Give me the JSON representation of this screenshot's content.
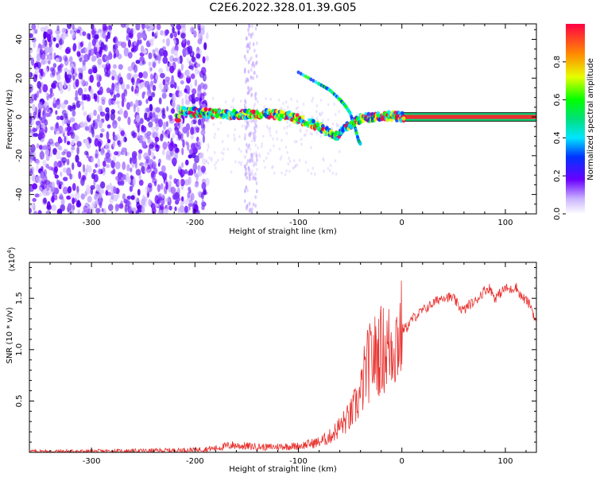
{
  "title": "C2E6.2022.328.01.39.G05",
  "colors": {
    "line": "#e8322f",
    "axis": "#000000",
    "trace_ridge": "#e8322f"
  },
  "chart_data": [
    {
      "type": "heatmap",
      "name": "spectrogram",
      "xlabel": "Height of straight line (km)",
      "ylabel": "Frequency (Hz)",
      "xlim": [
        -360,
        130
      ],
      "ylim": [
        -50,
        48
      ],
      "xticks": [
        -300,
        -200,
        -100,
        0,
        100
      ],
      "xtick_labels": [
        "-300",
        "-200",
        "-100",
        "0",
        "100"
      ],
      "yticks": [
        -40,
        -20,
        0,
        20,
        40
      ],
      "ytick_labels": [
        "-40",
        "-20",
        "0",
        "20",
        "40"
      ],
      "colorbar": {
        "label": "Normalized spectral amplitude",
        "range": [
          0,
          1
        ],
        "ticks": [
          0.0,
          0.2,
          0.4,
          0.6,
          0.8
        ],
        "tick_labels": [
          "0.0",
          "0.2",
          "0.4",
          "0.6",
          "0.8"
        ]
      },
      "ridge": {
        "description_free_points_x": [
          -215,
          -190,
          -170,
          -150,
          -130,
          -110,
          -95,
          -80,
          -70,
          -62,
          -55,
          -50,
          -45,
          -40,
          -30,
          -20,
          -10,
          0,
          20,
          60,
          100,
          130
        ],
        "description_free_points_y": [
          3,
          2,
          1,
          1.5,
          1.5,
          0.5,
          -2,
          -5,
          -8,
          -10,
          -6,
          -4,
          -2,
          -1,
          0,
          0.5,
          0.5,
          0,
          0,
          0,
          0,
          0
        ]
      },
      "secondary_trace": {
        "x": [
          -100,
          -80,
          -70,
          -60,
          -55,
          -50,
          -45,
          -42,
          -40
        ],
        "y": [
          23,
          17,
          14,
          9,
          6,
          2,
          -6,
          -12,
          -14
        ]
      }
    },
    {
      "type": "line",
      "name": "snr",
      "xlabel": "Height of straight line (km)",
      "ylabel": "SNR (10 * v/v)",
      "ylabel_scale": "(x10",
      "ylabel_scale_exp": "4",
      "ylabel_scale_close": ")",
      "xlim": [
        -360,
        130
      ],
      "ylim": [
        0,
        1.85
      ],
      "xticks": [
        -300,
        -200,
        -100,
        0,
        100
      ],
      "xtick_labels": [
        "-300",
        "-200",
        "-100",
        "0",
        "100"
      ],
      "yticks": [
        0.5,
        1.0,
        1.5
      ],
      "ytick_labels": [
        "0.5",
        "1.0",
        "1.5"
      ],
      "x": [
        -360,
        -300,
        -250,
        -220,
        -200,
        -180,
        -165,
        -150,
        -130,
        -110,
        -100,
        -90,
        -80,
        -70,
        -60,
        -50,
        -40,
        -35,
        -30,
        -25,
        -20,
        -15,
        -10,
        -5,
        0,
        5,
        10,
        20,
        30,
        40,
        50,
        55,
        60,
        65,
        70,
        80,
        85,
        90,
        95,
        100,
        105,
        110,
        115,
        120,
        125,
        130
      ],
      "y": [
        0.01,
        0.01,
        0.015,
        0.02,
        0.025,
        0.04,
        0.07,
        0.06,
        0.05,
        0.06,
        0.06,
        0.08,
        0.1,
        0.15,
        0.25,
        0.35,
        0.55,
        0.8,
        0.9,
        0.95,
        1.0,
        1.0,
        1.05,
        1.1,
        1.2,
        1.22,
        1.3,
        1.38,
        1.45,
        1.52,
        1.5,
        1.42,
        1.38,
        1.44,
        1.46,
        1.58,
        1.6,
        1.5,
        1.55,
        1.6,
        1.58,
        1.62,
        1.52,
        1.48,
        1.42,
        1.25
      ]
    }
  ]
}
